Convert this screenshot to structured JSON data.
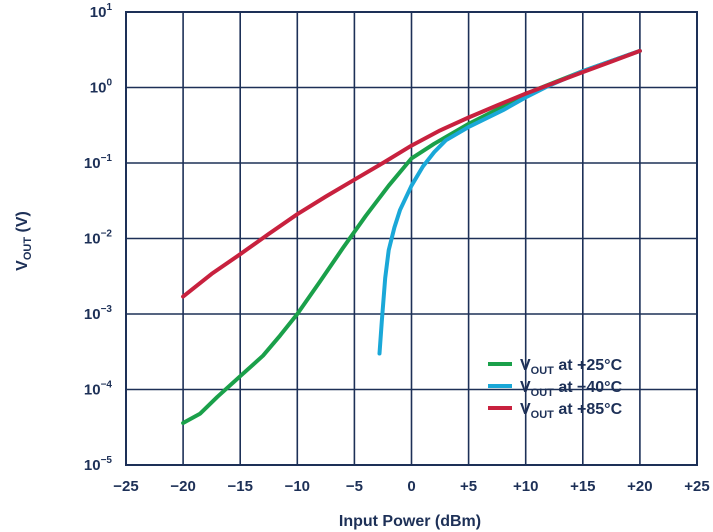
{
  "chart_data": {
    "type": "line",
    "title": "",
    "xlabel": "Input Power (dBm)",
    "ylabel_main": "V",
    "ylabel_sub": "OUT",
    "ylabel_unit": " (V)",
    "xlim": [
      -25,
      25
    ],
    "ylim": [
      1e-05,
      10
    ],
    "y_scale": "log",
    "grid": true,
    "legend_position": "bottom-right",
    "x_ticks": [
      {
        "value": -25,
        "label": "−25"
      },
      {
        "value": -20,
        "label": "−20"
      },
      {
        "value": -15,
        "label": "−15"
      },
      {
        "value": -10,
        "label": "−10"
      },
      {
        "value": -5,
        "label": "−5"
      },
      {
        "value": 0,
        "label": "0"
      },
      {
        "value": 5,
        "label": "+5"
      },
      {
        "value": 10,
        "label": "+10"
      },
      {
        "value": 15,
        "label": "+15"
      },
      {
        "value": 20,
        "label": "+20"
      },
      {
        "value": 25,
        "label": "+25"
      }
    ],
    "y_ticks": [
      {
        "value": 10,
        "base": "10",
        "exp": "1"
      },
      {
        "value": 1,
        "base": "10",
        "exp": "0"
      },
      {
        "value": 0.1,
        "base": "10",
        "exp": "−1"
      },
      {
        "value": 0.01,
        "base": "10",
        "exp": "−2"
      },
      {
        "value": 0.001,
        "base": "10",
        "exp": "−3"
      },
      {
        "value": 0.0001,
        "base": "10",
        "exp": "−4"
      },
      {
        "value": 1e-05,
        "base": "10",
        "exp": "−5"
      }
    ],
    "series": [
      {
        "name_main": "V",
        "name_sub": "OUT",
        "name_rest": " at +25°C",
        "color": "#1aa04a",
        "x": [
          -20,
          -18.5,
          -17,
          -15,
          -13,
          -11.5,
          -10,
          -8,
          -6,
          -4,
          -2,
          0,
          2,
          5,
          8,
          11,
          15,
          20
        ],
        "y": [
          3.6e-05,
          4.8e-05,
          8e-05,
          0.00015,
          0.00028,
          0.00052,
          0.001,
          0.0027,
          0.0075,
          0.02,
          0.05,
          0.115,
          0.18,
          0.33,
          0.56,
          0.95,
          1.65,
          3.05
        ]
      },
      {
        "name_main": "V",
        "name_sub": "OUT",
        "name_rest": " at −40°C",
        "color": "#1aa8d8",
        "x": [
          -2.8,
          -2.6,
          -2.3,
          -2,
          -1.5,
          -1,
          0,
          1,
          2,
          3,
          5,
          8,
          10,
          12,
          15,
          20
        ],
        "y": [
          0.0003,
          0.0008,
          0.003,
          0.007,
          0.014,
          0.024,
          0.05,
          0.09,
          0.14,
          0.2,
          0.3,
          0.5,
          0.74,
          1.05,
          1.65,
          3.05
        ]
      },
      {
        "name_main": "V",
        "name_sub": "OUT",
        "name_rest": " at +85°C",
        "color": "#c8213e",
        "x": [
          -20,
          -17.5,
          -15,
          -12.5,
          -10,
          -7.5,
          -5,
          -2.5,
          0,
          2.5,
          5,
          7.5,
          10,
          12.5,
          15,
          17.5,
          20
        ],
        "y": [
          0.0017,
          0.0034,
          0.0062,
          0.0115,
          0.021,
          0.036,
          0.06,
          0.1,
          0.17,
          0.27,
          0.4,
          0.58,
          0.83,
          1.15,
          1.6,
          2.2,
          3.05
        ]
      }
    ]
  }
}
